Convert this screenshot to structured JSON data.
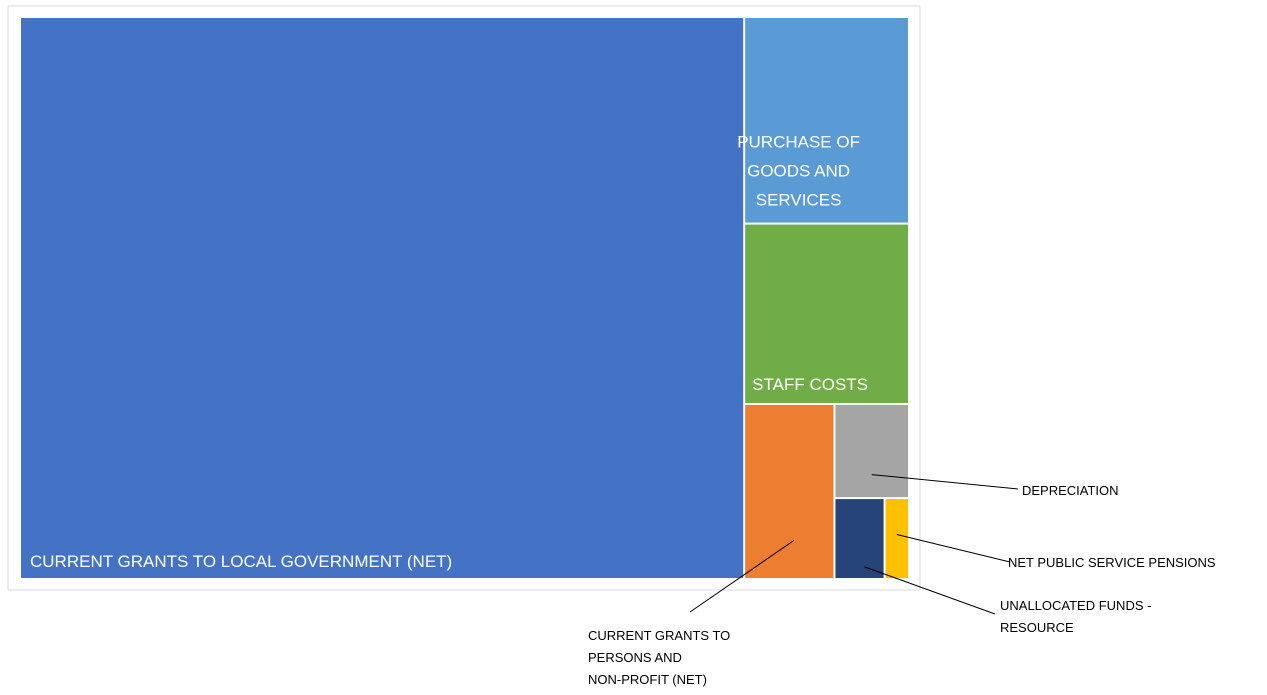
{
  "chart_data": {
    "type": "treemap",
    "items": [
      {
        "name": "CURRENT GRANTS TO LOCAL GOVERNMENT (NET)",
        "value": 78.3,
        "color": "#4472C4"
      },
      {
        "name": "PURCHASE OF GOODS AND SERVICES",
        "value": 6.55,
        "color": "#5B9BD5"
      },
      {
        "name": "STAFF COSTS",
        "value": 5.72,
        "color": "#70AD47"
      },
      {
        "name": "CURRENT GRANTS TO PERSONS AND NON-PROFIT (NET)",
        "value": 3.04,
        "color": "#ED7D31"
      },
      {
        "name": "DEPRECIATION",
        "value": 1.35,
        "color": "#A5A5A5"
      },
      {
        "name": "UNALLOCATED FUNDS - RESOURCE",
        "value": 0.78,
        "color": "#264478"
      },
      {
        "name": "NET PUBLIC SERVICE PENSIONS",
        "value": 0.38,
        "color": "#FFC000"
      }
    ]
  }
}
